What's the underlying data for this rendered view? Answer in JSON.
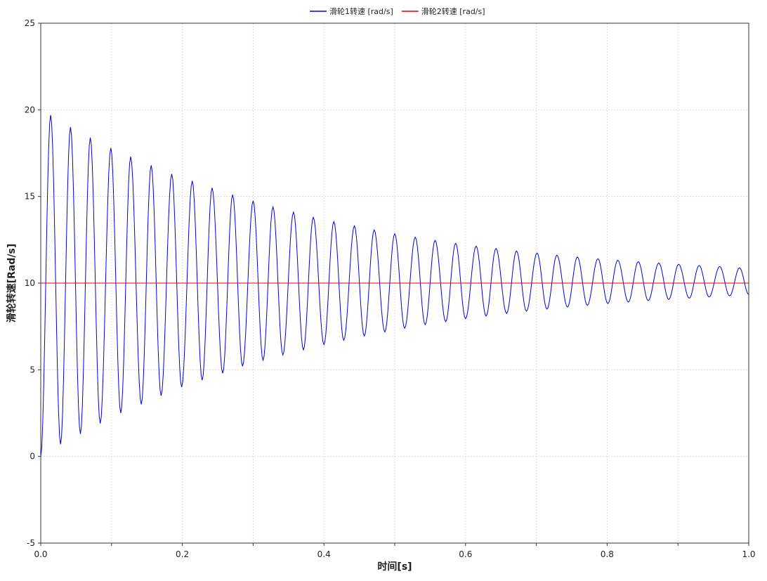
{
  "chart_data": {
    "type": "line",
    "title": "",
    "xlabel": "时间[s]",
    "ylabel": "滑轮转速[Rad/s]",
    "xlim": [
      0,
      1.0
    ],
    "ylim": [
      -5,
      25
    ],
    "xticks": [
      0.0,
      0.2,
      0.4,
      0.6,
      0.8,
      1.0
    ],
    "xtick_labels": [
      "0.0",
      "0.2",
      "0.4",
      "0.6",
      "0.8",
      "1.0"
    ],
    "yticks": [
      -5,
      0,
      5,
      10,
      15,
      20,
      25
    ],
    "ytick_labels": [
      "-5",
      "0",
      "5",
      "10",
      "15",
      "20",
      "25"
    ],
    "grid": true,
    "legend_position": "top-center",
    "series": [
      {
        "name": "滑轮1转速 [rad/s]",
        "color": "#0000e6",
        "x": [
          0.0,
          0.014,
          0.028,
          0.042,
          0.056,
          0.07,
          0.084,
          0.099,
          0.113,
          0.127,
          0.142,
          0.156,
          0.17,
          0.185,
          0.199,
          0.214,
          0.228,
          0.242,
          0.257,
          0.271,
          0.285,
          0.3,
          0.314,
          0.328,
          0.342,
          0.357,
          0.371,
          0.385,
          0.4,
          0.414,
          0.428,
          0.443,
          0.457,
          0.471,
          0.486,
          0.5,
          0.514,
          0.529,
          0.543,
          0.557,
          0.572,
          0.586,
          0.6,
          0.615,
          0.629,
          0.643,
          0.658,
          0.672,
          0.686,
          0.701,
          0.715,
          0.729,
          0.744,
          0.758,
          0.772,
          0.787,
          0.801,
          0.815,
          0.83,
          0.844,
          0.858,
          0.873,
          0.887,
          0.901,
          0.916,
          0.93,
          0.944,
          0.959,
          0.973,
          0.987,
          1.0
        ],
        "y": [
          0.0,
          19.7,
          0.7,
          19.0,
          1.3,
          18.4,
          1.9,
          17.8,
          2.5,
          17.3,
          3.0,
          16.8,
          3.5,
          16.3,
          4.0,
          15.9,
          4.4,
          15.5,
          4.8,
          15.1,
          5.2,
          14.75,
          5.55,
          14.4,
          5.85,
          14.1,
          6.15,
          13.8,
          6.45,
          13.55,
          6.7,
          13.3,
          6.95,
          13.07,
          7.18,
          12.85,
          7.4,
          12.65,
          7.6,
          12.47,
          7.78,
          12.3,
          7.95,
          12.14,
          8.1,
          12.0,
          8.25,
          11.86,
          8.38,
          11.74,
          8.5,
          11.62,
          8.62,
          11.51,
          8.72,
          11.41,
          8.82,
          11.32,
          8.91,
          11.24,
          8.99,
          11.16,
          9.06,
          11.09,
          9.13,
          11.02,
          9.2,
          10.96,
          9.26,
          10.88,
          9.35
        ]
      },
      {
        "name": "滑轮2转速 [rad/s]",
        "color": "#e60000",
        "x": [
          0.0,
          1.0
        ],
        "y": [
          10.0,
          10.0
        ]
      }
    ]
  }
}
